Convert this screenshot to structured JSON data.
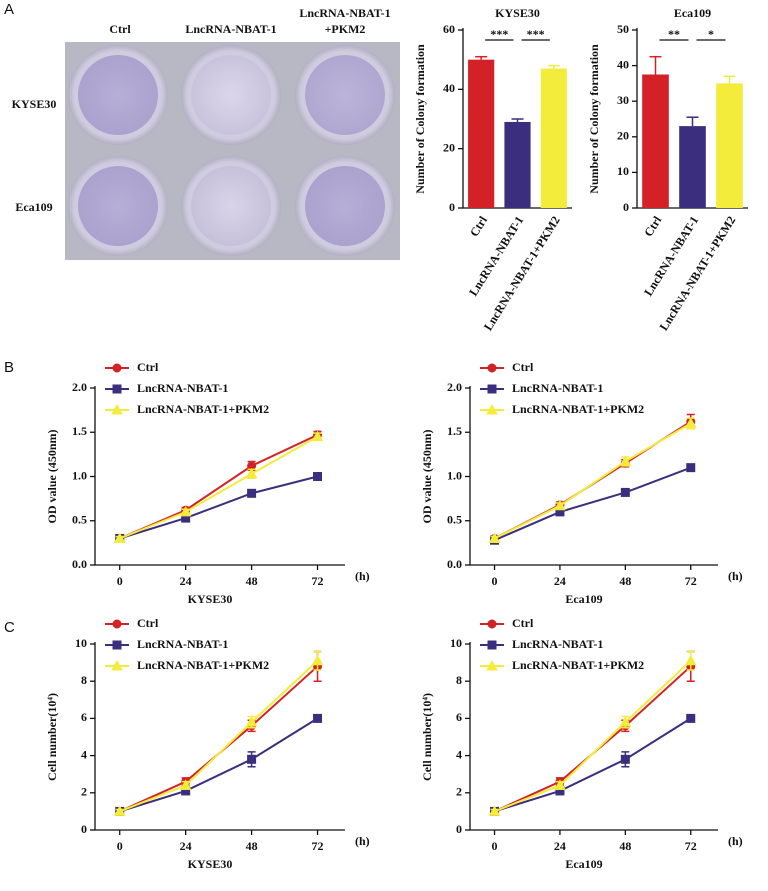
{
  "panel_labels": [
    "A",
    "B",
    "C"
  ],
  "photos": {
    "columns": [
      [
        "Ctrl"
      ],
      [
        "LncRNA-NBAT-1"
      ],
      [
        "LncRNA-NBAT-1",
        "+PKM2"
      ]
    ],
    "rows": [
      "KYSE30",
      "Eca109"
    ]
  },
  "chart_data": [
    {
      "type": "bar",
      "title": "KYSE30",
      "y_label": "Number of Colony formation",
      "categories": [
        "Ctrl",
        "LncRNA-NBAT-1",
        "LncRNA-NBAT-1+PKM2"
      ],
      "values": [
        50,
        29,
        47
      ],
      "errors": [
        1,
        1,
        1
      ],
      "colors": [
        "#d42027",
        "#3b2e7e",
        "#f3ec3a"
      ],
      "significance": [
        "***",
        "***"
      ],
      "ylim": [
        0,
        60
      ],
      "yticks": [
        0,
        20,
        40,
        60
      ]
    },
    {
      "type": "bar",
      "title": "Eca109",
      "y_label": "Number of Colony formation",
      "categories": [
        "Ctrl",
        "LncRNA-NBAT-1",
        "LncRNA-NBAT-1+PKM2"
      ],
      "values": [
        37.5,
        23,
        35
      ],
      "errors": [
        5,
        2.5,
        2
      ],
      "colors": [
        "#d42027",
        "#3b2e7e",
        "#f3ec3a"
      ],
      "significance": [
        "**",
        "*"
      ],
      "ylim": [
        0,
        50
      ],
      "yticks": [
        0,
        10,
        20,
        30,
        40,
        50
      ]
    },
    {
      "type": "line",
      "x_label": "KYSE30",
      "x_unit": "(h)",
      "y_label": "OD value (450nm)",
      "x": [
        0,
        24,
        48,
        72
      ],
      "xlim": [
        -9,
        82
      ],
      "xticks": [
        0,
        24,
        48,
        72
      ],
      "ylim": [
        0,
        2
      ],
      "yticks": [
        {
          "value": 0,
          "label": "0.0"
        },
        {
          "value": 0.5,
          "label": "0.5"
        },
        {
          "value": 1,
          "label": "1.0"
        },
        {
          "value": 1.5,
          "label": "1.5"
        },
        {
          "value": 2,
          "label": "2.0"
        }
      ],
      "series": [
        {
          "name": "Ctrl",
          "color": "#d42027",
          "marker": "circle",
          "values": [
            0.3,
            0.62,
            1.12,
            1.47
          ],
          "errors": [
            0.02,
            0.03,
            0.05,
            0.04
          ]
        },
        {
          "name": "LncRNA-NBAT-1",
          "color": "#3b2e7e",
          "marker": "square",
          "values": [
            0.3,
            0.53,
            0.81,
            1.0
          ],
          "errors": [
            0.02,
            0.03,
            0.03,
            0.02
          ]
        },
        {
          "name": "LncRNA-NBAT-1+PKM2",
          "color": "#f3ec3a",
          "marker": "triangle",
          "values": [
            0.3,
            0.6,
            1.03,
            1.45
          ],
          "errors": [
            0.02,
            0.03,
            0.05,
            0.04
          ]
        }
      ]
    },
    {
      "type": "line",
      "x_label": "Eca109",
      "x_unit": "(h)",
      "y_label": "OD value (450nm)",
      "x": [
        0,
        24,
        48,
        72
      ],
      "xlim": [
        -9,
        82
      ],
      "xticks": [
        0,
        24,
        48,
        72
      ],
      "ylim": [
        0,
        2
      ],
      "yticks": [
        {
          "value": 0,
          "label": "0.0"
        },
        {
          "value": 0.5,
          "label": "0.5"
        },
        {
          "value": 1,
          "label": "1.0"
        },
        {
          "value": 1.5,
          "label": "1.5"
        },
        {
          "value": 2,
          "label": "2.0"
        }
      ],
      "series": [
        {
          "name": "Ctrl",
          "color": "#d42027",
          "marker": "circle",
          "values": [
            0.3,
            0.68,
            1.15,
            1.62
          ],
          "errors": [
            0.02,
            0.03,
            0.04,
            0.08
          ]
        },
        {
          "name": "LncRNA-NBAT-1",
          "color": "#3b2e7e",
          "marker": "square",
          "values": [
            0.28,
            0.6,
            0.82,
            1.1
          ],
          "errors": [
            0.02,
            0.02,
            0.02,
            0.02
          ]
        },
        {
          "name": "LncRNA-NBAT-1+PKM2",
          "color": "#f3ec3a",
          "marker": "triangle",
          "values": [
            0.3,
            0.67,
            1.17,
            1.6
          ],
          "errors": [
            0.02,
            0.03,
            0.05,
            0.06
          ]
        }
      ]
    },
    {
      "type": "line",
      "x_label": "KYSE30",
      "x_unit": "(h)",
      "y_label": "Cell number(10⁴)",
      "x": [
        0,
        24,
        48,
        72
      ],
      "xlim": [
        -9,
        82
      ],
      "xticks": [
        0,
        24,
        48,
        72
      ],
      "ylim": [
        0,
        10
      ],
      "yticks": [
        0,
        2,
        4,
        6,
        8,
        10
      ],
      "series": [
        {
          "name": "Ctrl",
          "color": "#d42027",
          "marker": "circle",
          "values": [
            1,
            2.6,
            5.6,
            8.8
          ],
          "errors": [
            0.1,
            0.2,
            0.3,
            0.8
          ]
        },
        {
          "name": "LncRNA-NBAT-1",
          "color": "#3b2e7e",
          "marker": "square",
          "values": [
            1,
            2.1,
            3.8,
            6
          ],
          "errors": [
            0.1,
            0.1,
            0.4,
            0.1
          ]
        },
        {
          "name": "LncRNA-NBAT-1+PKM2",
          "color": "#f3ec3a",
          "marker": "triangle",
          "values": [
            1,
            2.4,
            5.8,
            9.1
          ],
          "errors": [
            0.1,
            0.2,
            0.3,
            0.5
          ]
        }
      ]
    },
    {
      "type": "line",
      "x_label": "Eca109",
      "x_unit": "(h)",
      "y_label": "Cell number(10⁴)",
      "x": [
        0,
        24,
        48,
        72
      ],
      "xlim": [
        -9,
        82
      ],
      "xticks": [
        0,
        24,
        48,
        72
      ],
      "ylim": [
        0,
        10
      ],
      "yticks": [
        0,
        2,
        4,
        6,
        8,
        10
      ],
      "series": [
        {
          "name": "Ctrl",
          "color": "#d42027",
          "marker": "circle",
          "values": [
            1,
            2.6,
            5.6,
            8.8
          ],
          "errors": [
            0.1,
            0.2,
            0.3,
            0.8
          ]
        },
        {
          "name": "LncRNA-NBAT-1",
          "color": "#3b2e7e",
          "marker": "square",
          "values": [
            1,
            2.1,
            3.8,
            6
          ],
          "errors": [
            0.1,
            0.1,
            0.4,
            0.1
          ]
        },
        {
          "name": "LncRNA-NBAT-1+PKM2",
          "color": "#f3ec3a",
          "marker": "triangle",
          "values": [
            1,
            2.4,
            5.8,
            9.1
          ],
          "errors": [
            0.1,
            0.2,
            0.3,
            0.5
          ]
        }
      ]
    }
  ]
}
